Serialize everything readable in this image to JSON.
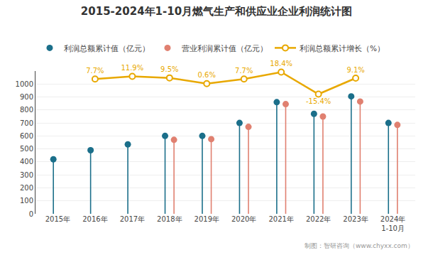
{
  "chart_data": {
    "type": "lollipop",
    "title": "2015-2024年1-10月燃气生产和供应业企业利润统计图",
    "categories": [
      "2015年",
      "2016年",
      "2017年",
      "2018年",
      "2019年",
      "2020年",
      "2021年",
      "2022年",
      "2023年",
      "2024年\n1-10月"
    ],
    "series": [
      {
        "name": "利润总额累计值（亿元）",
        "type": "lollipop",
        "color": "#1b6f8a",
        "marker": "circle",
        "values": [
          420,
          490,
          535,
          600,
          600,
          700,
          860,
          770,
          905,
          700
        ]
      },
      {
        "name": "营业利润累计值（亿元）",
        "type": "lollipop",
        "color": "#e08070",
        "marker": "circle",
        "values": [
          null,
          null,
          null,
          570,
          575,
          670,
          845,
          750,
          865,
          685
        ]
      },
      {
        "name": "利润总额累计增长（%）",
        "type": "line",
        "color": "#e8a800",
        "marker": "circle",
        "axis": "y2",
        "data_labels": true,
        "values": [
          null,
          7.7,
          11.9,
          9.5,
          0.6,
          7.7,
          18.4,
          -15.4,
          9.1,
          null
        ],
        "value_labels": [
          null,
          "7.7%",
          "11.9%",
          "9.5%",
          "0.6%",
          "7.7%",
          "18.4%",
          "-15.4%",
          "9.1%",
          null
        ]
      }
    ],
    "ylim": [
      0,
      1100
    ],
    "yticks": [
      0,
      100,
      200,
      300,
      400,
      500,
      600,
      700,
      800,
      900,
      1000
    ],
    "y2lim": [
      -199,
      20
    ],
    "y2ticks": [],
    "grid": true,
    "legend": "top",
    "annotations": [
      "制图：智研咨询（www.chyxx.com）"
    ]
  }
}
